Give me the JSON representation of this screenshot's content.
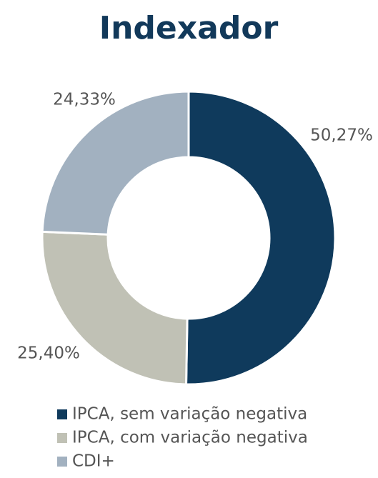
{
  "chart_data": {
    "type": "donut",
    "title": "Indexador",
    "categories": [
      "IPCA, sem variação negativa",
      "IPCA, com variação negativa",
      "CDI+"
    ],
    "values": [
      50.27,
      25.4,
      24.33
    ],
    "value_labels": [
      "50,27%",
      "25,40%",
      "24,33%"
    ],
    "colors": [
      "#0f3a5c",
      "#c0c1b5",
      "#a2b1c0"
    ],
    "legend": "bottom"
  }
}
